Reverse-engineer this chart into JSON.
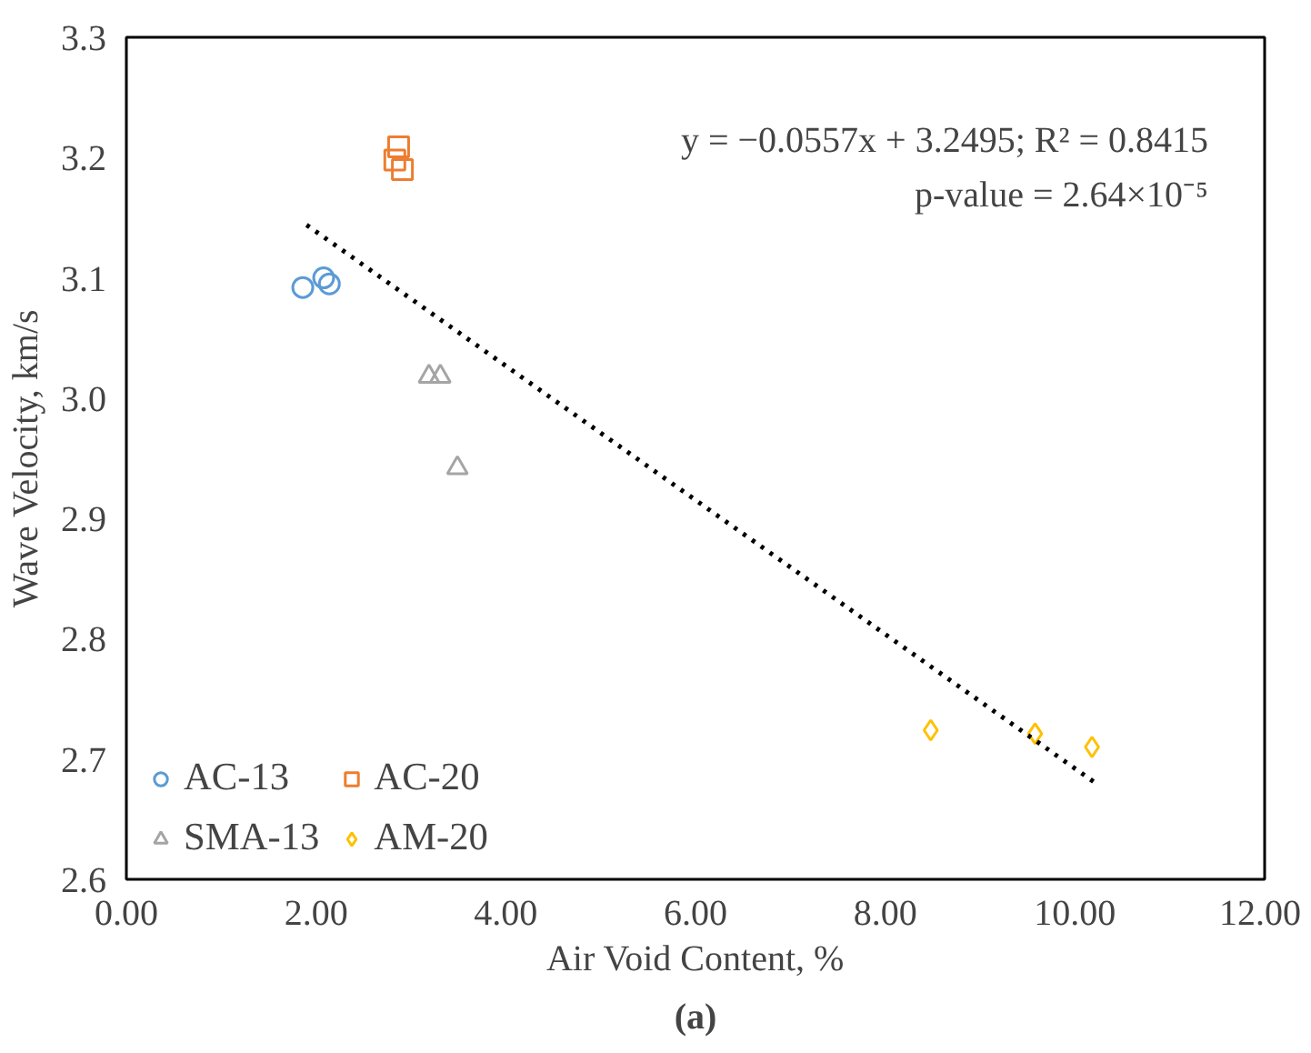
{
  "chart_data": {
    "type": "scatter",
    "xlabel": "Air Void Content, %",
    "ylabel": "Wave Velocity, km/s",
    "xlim": [
      0,
      12
    ],
    "ylim": [
      2.6,
      3.3
    ],
    "xticks": [
      {
        "value": 0,
        "label": "0.00"
      },
      {
        "value": 2,
        "label": "2.00"
      },
      {
        "value": 4,
        "label": "4.00"
      },
      {
        "value": 6,
        "label": "6.00"
      },
      {
        "value": 8,
        "label": "8.00"
      },
      {
        "value": 10,
        "label": "10.00"
      },
      {
        "value": 12,
        "label": "12.00"
      }
    ],
    "yticks": [
      2.6,
      2.7,
      2.8,
      2.9,
      {
        "value": 3.0,
        "label": "3.0"
      },
      3.1,
      3.2,
      3.3
    ],
    "grid": false,
    "legend": "bottom left",
    "series": [
      {
        "name": "AC-13",
        "color": "#5b9bd5",
        "marker": "circle",
        "x": [
          1.86,
          2.08,
          2.14
        ],
        "values": [
          3.092,
          3.1,
          3.095
        ]
      },
      {
        "name": "AC-20",
        "color": "#ed7d31",
        "marker": "square",
        "x": [
          2.87,
          2.83,
          2.91
        ],
        "values": [
          3.209,
          3.198,
          3.19
        ]
      },
      {
        "name": "SMA-13",
        "color": "#a5a5a5",
        "marker": "triangle",
        "x": [
          3.19,
          3.31,
          3.49
        ],
        "values": [
          3.018,
          3.018,
          2.942
        ]
      },
      {
        "name": "AM-20",
        "color": "#ffc000",
        "marker": "diamond",
        "x": [
          8.48,
          9.58,
          10.18
        ],
        "values": [
          2.724,
          2.721,
          2.71
        ]
      },
      {
        "type": "line",
        "color": "#000000",
        "line_style": "dotted",
        "x": [
          1.9,
          10.2
        ],
        "values": [
          3.144,
          2.681
        ]
      }
    ],
    "annotations": [
      "y = −0.0557x + 3.2495; R² = 0.8415",
      "p-value = 2.64×10⁻⁵",
      "(a)"
    ]
  }
}
